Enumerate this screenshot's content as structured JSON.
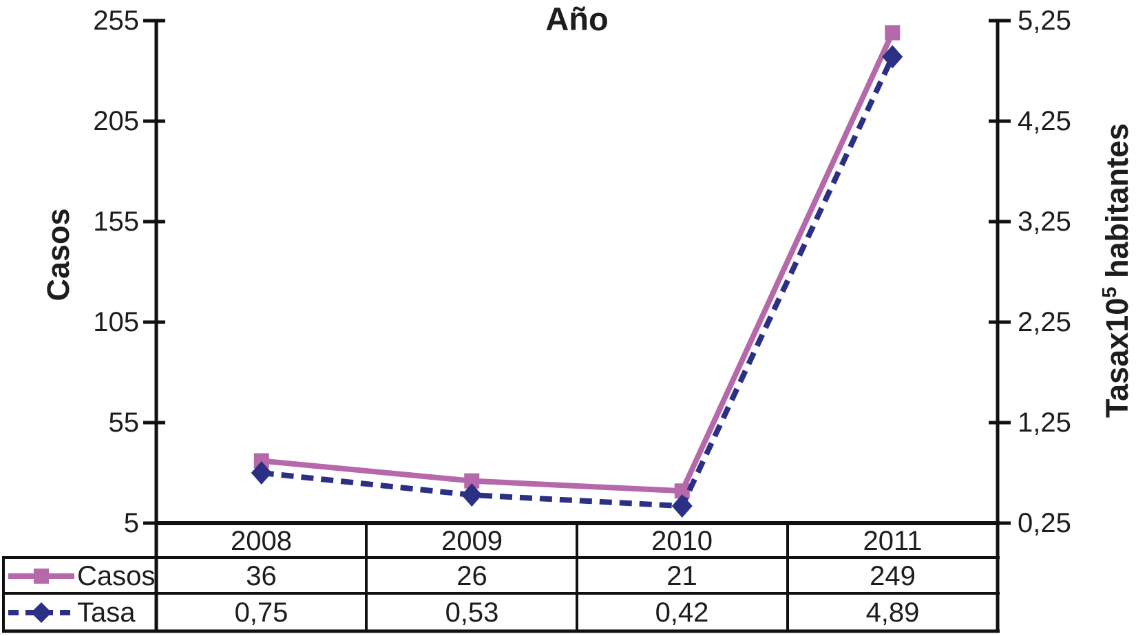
{
  "title": "Año",
  "colors": {
    "casos_pink": "#b568aa",
    "tasa_navy": "#2b3085",
    "axis_black": "#111111",
    "text_dark": "#1d1d1b"
  },
  "chart_data": {
    "type": "line",
    "dual_axis": true,
    "title": "Año",
    "categories": [
      "2008",
      "2009",
      "2010",
      "2011"
    ],
    "series": [
      {
        "key": "casos",
        "name": "Casos",
        "axis": "left",
        "marker": "square",
        "line_style": "solid",
        "color": "#b568aa",
        "values": [
          36,
          26,
          21,
          249
        ]
      },
      {
        "key": "tasa",
        "name": "Tasa",
        "axis": "right",
        "marker": "diamond",
        "line_style": "dashed",
        "color": "#2b3085",
        "values": [
          0.75,
          0.53,
          0.42,
          4.89
        ]
      }
    ],
    "left_axis": {
      "label": "Casos",
      "min": 5,
      "max": 255,
      "tick_step": 50,
      "ticks": [
        "255",
        "205",
        "155",
        "105",
        "55",
        "5"
      ]
    },
    "right_axis": {
      "label": "Tasax10⁵ habitantes",
      "label_base": "Tasax10",
      "label_sup": "5",
      "label_rest": " habitantes",
      "min": 0.25,
      "max": 5.25,
      "tick_step": 1,
      "ticks": [
        "5,25",
        "4,25",
        "3,25",
        "2,25",
        "1,25",
        "0,25"
      ]
    },
    "grid": false,
    "legend_position": "table-left"
  },
  "table": {
    "rows": [
      {
        "label": "Casos",
        "values": [
          "36",
          "26",
          "21",
          "249"
        ]
      },
      {
        "label": "Tasa",
        "values": [
          "0,75",
          "0,53",
          "0,42",
          "4,89"
        ]
      }
    ]
  }
}
